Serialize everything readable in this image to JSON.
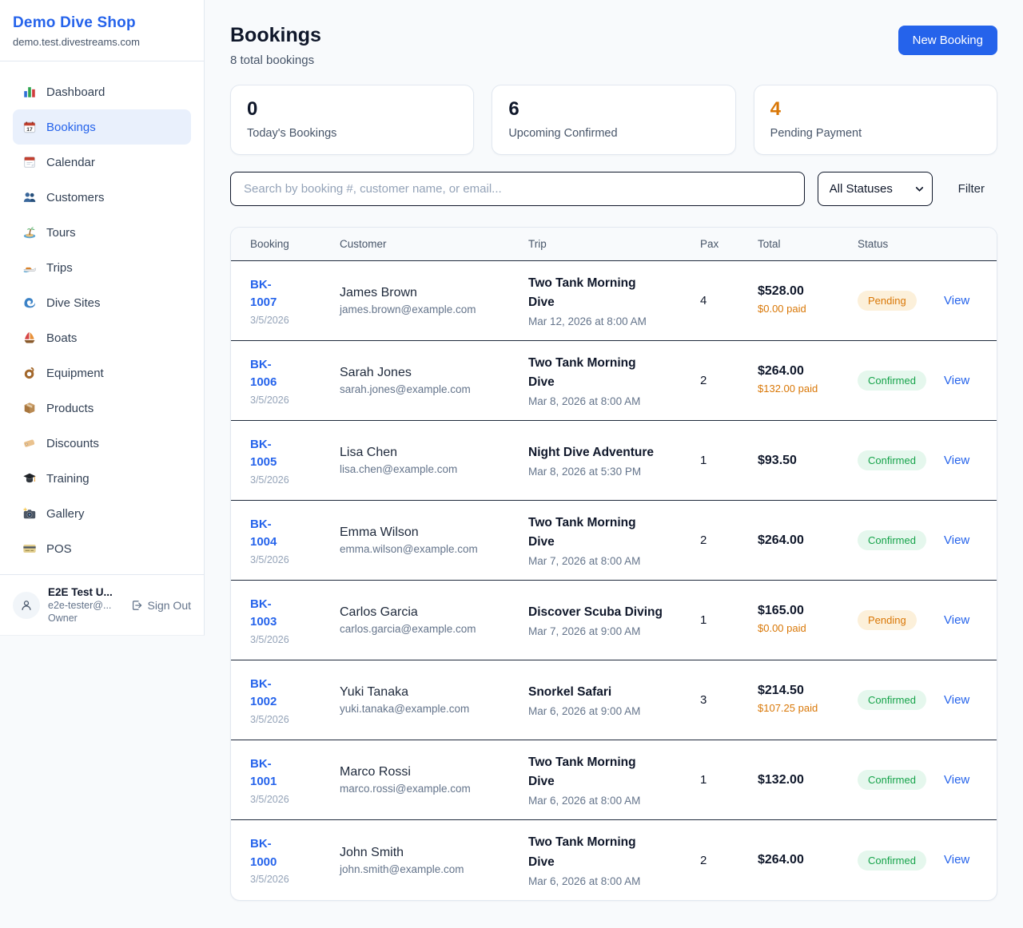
{
  "app": {
    "name": "Demo Dive Shop",
    "domain": "demo.test.divestreams.com"
  },
  "sidebar": {
    "items": [
      {
        "label": "Dashboard",
        "icon": "bar-chart",
        "active": false
      },
      {
        "label": "Bookings",
        "icon": "calendar",
        "active": true
      },
      {
        "label": "Calendar",
        "icon": "tear-off-calendar",
        "active": false
      },
      {
        "label": "Customers",
        "icon": "two-people",
        "active": false
      },
      {
        "label": "Tours",
        "icon": "desert-island",
        "active": false
      },
      {
        "label": "Trips",
        "icon": "speedboat",
        "active": false
      },
      {
        "label": "Dive Sites",
        "icon": "wave",
        "active": false
      },
      {
        "label": "Boats",
        "icon": "sailboat",
        "active": false
      },
      {
        "label": "Equipment",
        "icon": "diving-mask",
        "active": false
      },
      {
        "label": "Products",
        "icon": "package",
        "active": false
      },
      {
        "label": "Discounts",
        "icon": "label-tag",
        "active": false
      },
      {
        "label": "Training",
        "icon": "graduation-cap",
        "active": false
      },
      {
        "label": "Gallery",
        "icon": "camera-flash",
        "active": false
      },
      {
        "label": "POS",
        "icon": "credit-card",
        "active": false
      }
    ],
    "user": {
      "name": "E2E Test U...",
      "email": "e2e-tester@...",
      "role": "Owner",
      "sign_out": "Sign Out"
    }
  },
  "header": {
    "title": "Bookings",
    "subtitle": "8 total bookings",
    "new_booking_label": "New Booking"
  },
  "stats": [
    {
      "value": "0",
      "label": "Today's Bookings",
      "color": "#0f172a"
    },
    {
      "value": "6",
      "label": "Upcoming Confirmed",
      "color": "#0f172a"
    },
    {
      "value": "4",
      "label": "Pending Payment",
      "color": "#d97706"
    }
  ],
  "filters": {
    "search_placeholder": "Search by booking #, customer name, or email...",
    "status_selected": "All Statuses",
    "filter_label": "Filter"
  },
  "table": {
    "columns": [
      "Booking",
      "Customer",
      "Trip",
      "Pax",
      "Total",
      "Status"
    ],
    "rows": [
      {
        "booking": "BK-1007",
        "date": "3/5/2026",
        "customer": "James Brown",
        "email": "james.brown@example.com",
        "trip": "Two Tank Morning Dive",
        "trip_date": "Mar 12, 2026 at 8:00 AM",
        "pax": "4",
        "total": "$528.00",
        "paid": "$0.00 paid",
        "status": "Pending",
        "action": "View"
      },
      {
        "booking": "BK-1006",
        "date": "3/5/2026",
        "customer": "Sarah Jones",
        "email": "sarah.jones@example.com",
        "trip": "Two Tank Morning Dive",
        "trip_date": "Mar 8, 2026 at 8:00 AM",
        "pax": "2",
        "total": "$264.00",
        "paid": "$132.00 paid",
        "status": "Confirmed",
        "action": "View"
      },
      {
        "booking": "BK-1005",
        "date": "3/5/2026",
        "customer": "Lisa Chen",
        "email": "lisa.chen@example.com",
        "trip": "Night Dive Adventure",
        "trip_date": "Mar 8, 2026 at 5:30 PM",
        "pax": "1",
        "total": "$93.50",
        "paid": "",
        "status": "Confirmed",
        "action": "View"
      },
      {
        "booking": "BK-1004",
        "date": "3/5/2026",
        "customer": "Emma Wilson",
        "email": "emma.wilson@example.com",
        "trip": "Two Tank Morning Dive",
        "trip_date": "Mar 7, 2026 at 8:00 AM",
        "pax": "2",
        "total": "$264.00",
        "paid": "",
        "status": "Confirmed",
        "action": "View"
      },
      {
        "booking": "BK-1003",
        "date": "3/5/2026",
        "customer": "Carlos Garcia",
        "email": "carlos.garcia@example.com",
        "trip": "Discover Scuba Diving",
        "trip_date": "Mar 7, 2026 at 9:00 AM",
        "pax": "1",
        "total": "$165.00",
        "paid": "$0.00 paid",
        "status": "Pending",
        "action": "View"
      },
      {
        "booking": "BK-1002",
        "date": "3/5/2026",
        "customer": "Yuki Tanaka",
        "email": "yuki.tanaka@example.com",
        "trip": "Snorkel Safari",
        "trip_date": "Mar 6, 2026 at 9:00 AM",
        "pax": "3",
        "total": "$214.50",
        "paid": "$107.25 paid",
        "status": "Confirmed",
        "action": "View"
      },
      {
        "booking": "BK-1001",
        "date": "3/5/2026",
        "customer": "Marco Rossi",
        "email": "marco.rossi@example.com",
        "trip": "Two Tank Morning Dive",
        "trip_date": "Mar 6, 2026 at 8:00 AM",
        "pax": "1",
        "total": "$132.00",
        "paid": "",
        "status": "Confirmed",
        "action": "View"
      },
      {
        "booking": "BK-1000",
        "date": "3/5/2026",
        "customer": "John Smith",
        "email": "john.smith@example.com",
        "trip": "Two Tank Morning Dive",
        "trip_date": "Mar 6, 2026 at 8:00 AM",
        "pax": "2",
        "total": "$264.00",
        "paid": "",
        "status": "Confirmed",
        "action": "View"
      }
    ]
  },
  "colors": {
    "accent_blue": "#2563eb",
    "pending_text": "#d97706",
    "pending_bg": "#fcf0da",
    "confirmed_text": "#16a34a",
    "confirmed_bg": "#e5f7ed",
    "page_bg": "#f8fafc",
    "row_divider": "#1e293b"
  }
}
